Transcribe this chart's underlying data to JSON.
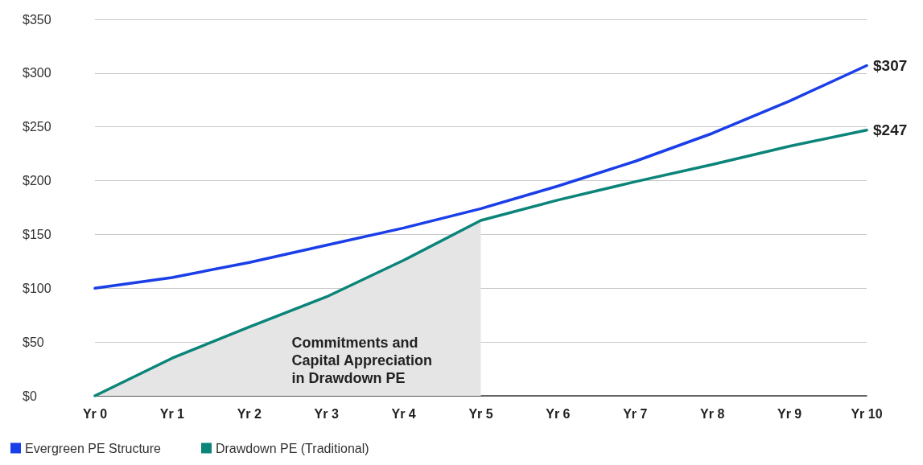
{
  "chart_data": {
    "type": "line",
    "categories": [
      "Yr 0",
      "Yr 1",
      "Yr 2",
      "Yr 3",
      "Yr 4",
      "Yr 5",
      "Yr 6",
      "Yr 7",
      "Yr 8",
      "Yr 9",
      "Yr 10"
    ],
    "series": [
      {
        "type": "area",
        "color": "#e5e5e5",
        "values": [
          0,
          35,
          64,
          92,
          126,
          163,
          null,
          null,
          null,
          null,
          null
        ]
      },
      {
        "name": "Evergreen PE Structure",
        "color": "#1a3ee8",
        "values": [
          100,
          110,
          124,
          140,
          156,
          174,
          195,
          218,
          244,
          274,
          307
        ],
        "value_labels": [
          null,
          null,
          null,
          null,
          null,
          null,
          null,
          null,
          null,
          null,
          "$307"
        ]
      },
      {
        "name": "Drawdown PE (Traditional)",
        "color": "#0b8479",
        "values": [
          0,
          35,
          64,
          92,
          126,
          163,
          182,
          199,
          215,
          232,
          247
        ],
        "value_labels": [
          null,
          null,
          null,
          null,
          null,
          null,
          null,
          null,
          null,
          null,
          "$247"
        ]
      }
    ],
    "ylim": [
      0,
      350
    ],
    "yticks": [
      {
        "value": 0,
        "label": "$0"
      },
      {
        "value": 50,
        "label": "$50"
      },
      {
        "value": 100,
        "label": "$100"
      },
      {
        "value": 150,
        "label": "$150"
      },
      {
        "value": 200,
        "label": "$200"
      },
      {
        "value": 250,
        "label": "$250"
      },
      {
        "value": 300,
        "label": "$300"
      },
      {
        "value": 350,
        "label": "$350"
      }
    ],
    "grid": "y",
    "legend": "bottom left",
    "marker": "none",
    "line_style": "solid",
    "annotations": [
      "Commitments and\nCapital Appreciation\nin Drawdown PE"
    ]
  }
}
